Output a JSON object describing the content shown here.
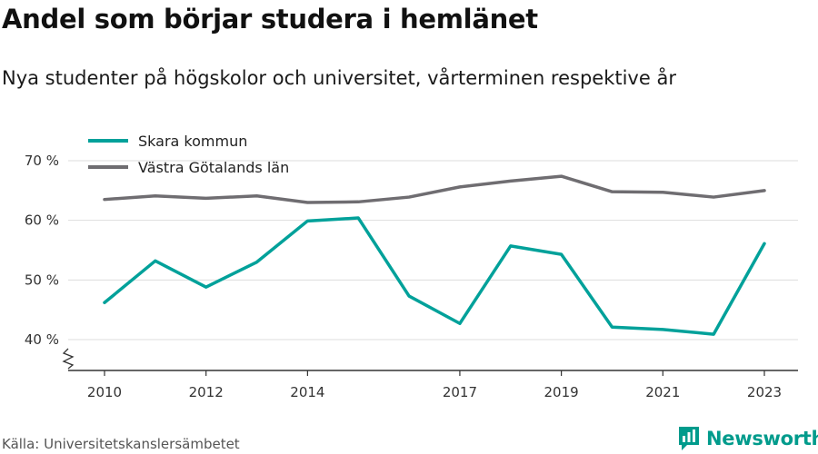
{
  "title": "Andel som börjar studera i hemlänet",
  "subtitle": "Nya studenter på högskolor och universitet, vårterminen respektive år",
  "source": "Källa: Universitetskanslersämbetet",
  "brand": {
    "name": "Newsworthy",
    "icon": "newsworthy-logo-icon"
  },
  "colors": {
    "skara": "#00a19a",
    "vgl": "#6f6d71",
    "grid": "#dddddd",
    "axis": "#333333"
  },
  "chart_data": {
    "type": "line",
    "x": [
      2010,
      2011,
      2012,
      2013,
      2014,
      2015,
      2016,
      2017,
      2018,
      2019,
      2020,
      2021,
      2022,
      2023
    ],
    "x_tick_labels": [
      "2010",
      "2012",
      "2014",
      "2017",
      "2019",
      "2021",
      "2023"
    ],
    "y_tick_labels": [
      "40 %",
      "50 %",
      "60 %",
      "70 %"
    ],
    "ylim": [
      35,
      72
    ],
    "grid": true,
    "legend_position": "top-left",
    "series": [
      {
        "name": "Skara kommun",
        "color": "#00a19a",
        "values": [
          46.2,
          53.2,
          48.8,
          53.0,
          59.9,
          60.4,
          47.3,
          42.7,
          55.7,
          54.3,
          42.1,
          41.7,
          40.9,
          56.1
        ]
      },
      {
        "name": "Västra Götalands län",
        "color": "#6f6d71",
        "values": [
          63.5,
          64.1,
          63.7,
          64.1,
          63.0,
          63.1,
          63.9,
          65.6,
          66.6,
          67.4,
          64.8,
          64.7,
          63.9,
          65.0
        ]
      }
    ]
  }
}
